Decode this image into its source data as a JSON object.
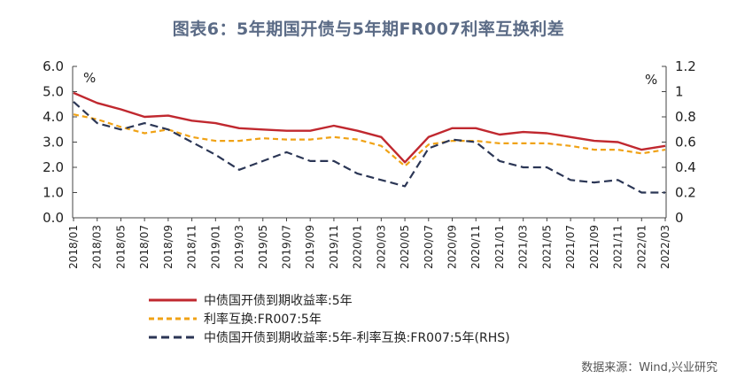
{
  "title": "图表6：5年期国开债与5年期FR007利率互换利差",
  "source": "数据来源：Wind,兴业研究",
  "chart_data": {
    "type": "line",
    "left_axis": {
      "unit": "%",
      "ticks": [
        "6.0",
        "5.0",
        "4.0",
        "3.0",
        "2.0",
        "1.0",
        "0.0"
      ],
      "range": [
        0,
        6
      ]
    },
    "right_axis": {
      "unit": "%",
      "ticks": [
        "1.2",
        "1",
        "0.8",
        "0.6",
        "0.4",
        "0.2",
        "0"
      ],
      "range": [
        0,
        1.2
      ]
    },
    "x_labels": [
      "2018/01",
      "2018/03",
      "2018/05",
      "2018/07",
      "2018/09",
      "2018/11",
      "2019/01",
      "2019/03",
      "2019/05",
      "2019/07",
      "2019/09",
      "2019/11",
      "2020/01",
      "2020/03",
      "2020/05",
      "2020/07",
      "2020/09",
      "2020/11",
      "2021/01",
      "2021/03",
      "2021/05",
      "2021/07",
      "2021/09",
      "2021/11",
      "2022/01",
      "2022/03"
    ],
    "series": [
      {
        "name": "中债国开债到期收益率:5年",
        "axis": "left",
        "color": "#c0282f",
        "style": "solid",
        "values": [
          4.95,
          4.55,
          4.3,
          4.0,
          4.05,
          3.85,
          3.75,
          3.55,
          3.5,
          3.45,
          3.45,
          3.65,
          3.45,
          3.2,
          2.2,
          3.2,
          3.55,
          3.55,
          3.3,
          3.4,
          3.35,
          3.2,
          3.05,
          3.0,
          2.7,
          2.85
        ]
      },
      {
        "name": "利率互换:FR007:5年",
        "axis": "left",
        "color": "#f0a215",
        "style": "dashed",
        "values": [
          4.1,
          3.9,
          3.6,
          3.35,
          3.5,
          3.2,
          3.05,
          3.05,
          3.15,
          3.1,
          3.1,
          3.2,
          3.1,
          2.85,
          2.05,
          2.9,
          3.05,
          3.05,
          2.95,
          2.95,
          2.95,
          2.85,
          2.7,
          2.7,
          2.55,
          2.7
        ]
      },
      {
        "name": "中债国开债到期收益率:5年-利率互换:FR007:5年(RHS)",
        "axis": "right",
        "color": "#2b3655",
        "style": "dashed",
        "values": [
          0.92,
          0.75,
          0.7,
          0.75,
          0.7,
          0.6,
          0.5,
          0.38,
          0.45,
          0.52,
          0.45,
          0.45,
          0.35,
          0.3,
          0.25,
          0.55,
          0.62,
          0.6,
          0.45,
          0.4,
          0.4,
          0.3,
          0.28,
          0.3,
          0.2,
          0.2
        ]
      }
    ]
  }
}
